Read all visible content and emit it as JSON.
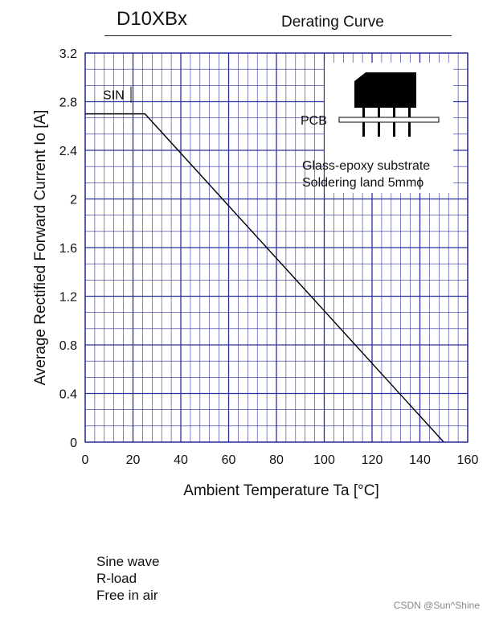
{
  "header": {
    "part_number": "D10XBx",
    "title": "Derating Curve"
  },
  "chart_data": {
    "type": "line",
    "title": "Derating Curve",
    "xlabel": "Ambient Temperature  Ta  [°C]",
    "ylabel": "Average Rectified Forward Current  Io [A]",
    "xlim": [
      0,
      160
    ],
    "ylim": [
      0,
      3.2
    ],
    "x_ticks": [
      "0",
      "20",
      "40",
      "60",
      "80",
      "100",
      "120",
      "140",
      "160"
    ],
    "y_ticks": [
      "0",
      "0.4",
      "0.8",
      "1.2",
      "1.6",
      "2",
      "2.4",
      "2.8",
      "3.2"
    ],
    "grid": true,
    "series": [
      {
        "name": "SIN",
        "x": [
          0,
          25,
          150
        ],
        "y": [
          2.7,
          2.7,
          0
        ]
      }
    ],
    "annotations": [
      "PCB",
      "Glass-epoxy  substrate",
      "Soldering  land  5mmϕ"
    ]
  },
  "conditions": [
    "Sine wave",
    "R-load",
    "Free in air"
  ],
  "watermark": "CSDN @Sun^Shine",
  "colors": {
    "grid": "#2b2f9e",
    "curve": "#000000",
    "component": "#000000"
  },
  "icons": {
    "component": "bridge-rectifier-package-icon"
  }
}
